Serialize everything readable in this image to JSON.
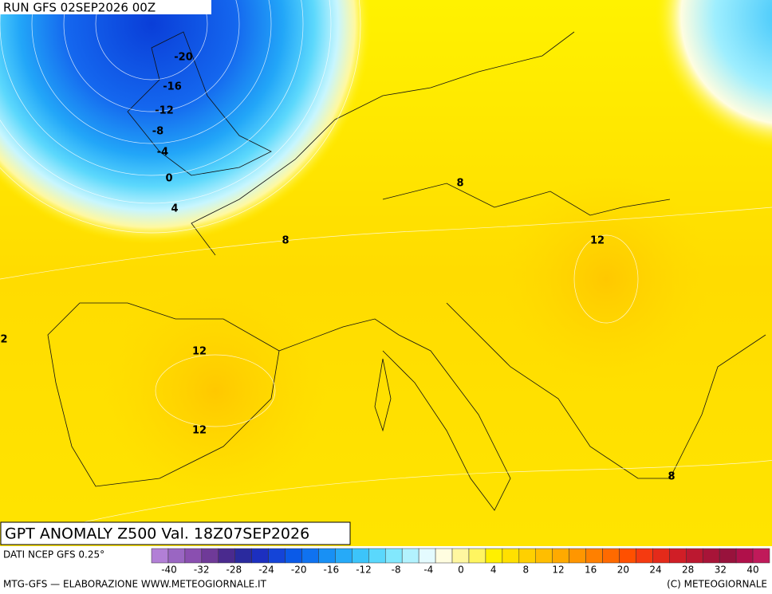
{
  "header": {
    "run": "RUN GFS 02SEP2026 00Z"
  },
  "map": {
    "title": "GPT ANOMALY Z500 Val. 18Z07SEP2026",
    "contour_labels": [
      -20,
      -16,
      -12,
      -8,
      -4,
      0,
      4,
      8,
      8,
      12,
      12,
      12,
      2,
      8
    ]
  },
  "colorbar": {
    "source": "DATI NCEP GFS 0.25°",
    "ticks": [
      -40,
      -32,
      -28,
      -24,
      -20,
      -16,
      -12,
      -8,
      -4,
      0,
      4,
      8,
      12,
      16,
      20,
      24,
      28,
      32,
      40
    ],
    "colors": [
      "#b27fd6",
      "#9a66c2",
      "#8a4fb0",
      "#6f3a98",
      "#4a2a8e",
      "#2a2a9e",
      "#1c2fc0",
      "#1444d8",
      "#0a5ae8",
      "#0f72f0",
      "#1890f5",
      "#26aaf8",
      "#3cc4fa",
      "#5ad8fc",
      "#82e8fd",
      "#b2f2fe",
      "#e4fbff",
      "#fffde0",
      "#fff7a0",
      "#fff560",
      "#fff000",
      "#ffe000",
      "#ffd000",
      "#ffbe00",
      "#ffaa00",
      "#ff9600",
      "#ff8000",
      "#ff6a00",
      "#ff5000",
      "#f53a10",
      "#e42a1a",
      "#d01e26",
      "#bc1830",
      "#a81438",
      "#98123c",
      "#b0104a",
      "#c01a5a"
    ]
  },
  "footer": {
    "left": "MTG-GFS — ELABORAZIONE WWW.METEOGIORNALE.IT",
    "right": "(C) METEOGIORNALE"
  }
}
